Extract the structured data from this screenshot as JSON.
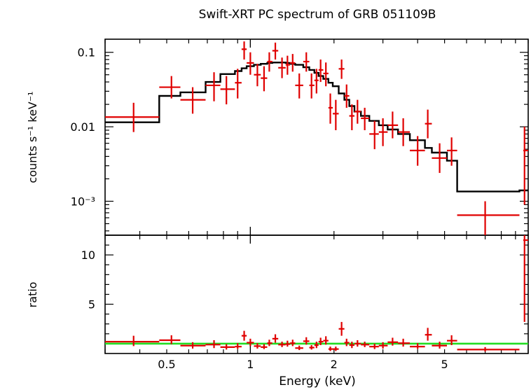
{
  "chart_data": [
    {
      "type": "scatter",
      "panel": "spectrum",
      "title": "Swift-XRT PC spectrum of GRB 051109B",
      "xlabel": "Energy (keV)",
      "ylabel": "counts s⁻¹ keV⁻¹",
      "xscale": "log",
      "yscale": "log",
      "xlim": [
        0.3,
        10
      ],
      "ylim": [
        0.00035,
        0.15
      ],
      "x_tick_labels": [
        "0.5",
        "1",
        "2",
        "5"
      ],
      "y_tick_labels": [
        "10⁻³",
        "0.01",
        "0.1"
      ],
      "series": [
        {
          "name": "",
          "kind": "data",
          "color": "#e00000",
          "points": [
            {
              "x": 0.38,
              "xlo": 0.3,
              "xhi": 0.47,
              "y": 0.0135,
              "ylo": 0.0085,
              "yhi": 0.021
            },
            {
              "x": 0.52,
              "xlo": 0.47,
              "xhi": 0.56,
              "y": 0.034,
              "ylo": 0.024,
              "yhi": 0.048
            },
            {
              "x": 0.62,
              "xlo": 0.56,
              "xhi": 0.69,
              "y": 0.023,
              "ylo": 0.015,
              "yhi": 0.034
            },
            {
              "x": 0.74,
              "xlo": 0.69,
              "xhi": 0.78,
              "y": 0.036,
              "ylo": 0.022,
              "yhi": 0.054
            },
            {
              "x": 0.82,
              "xlo": 0.78,
              "xhi": 0.88,
              "y": 0.032,
              "ylo": 0.02,
              "yhi": 0.048
            },
            {
              "x": 0.9,
              "xlo": 0.88,
              "xhi": 0.93,
              "y": 0.039,
              "ylo": 0.024,
              "yhi": 0.06
            },
            {
              "x": 0.95,
              "xlo": 0.93,
              "xhi": 0.97,
              "y": 0.11,
              "ylo": 0.08,
              "yhi": 0.14
            },
            {
              "x": 1.0,
              "xlo": 0.97,
              "xhi": 1.03,
              "y": 0.072,
              "ylo": 0.05,
              "yhi": 0.1
            },
            {
              "x": 1.06,
              "xlo": 1.03,
              "xhi": 1.09,
              "y": 0.05,
              "ylo": 0.035,
              "yhi": 0.07
            },
            {
              "x": 1.12,
              "xlo": 1.09,
              "xhi": 1.15,
              "y": 0.045,
              "ylo": 0.03,
              "yhi": 0.065
            },
            {
              "x": 1.17,
              "xlo": 1.15,
              "xhi": 1.2,
              "y": 0.075,
              "ylo": 0.055,
              "yhi": 0.1
            },
            {
              "x": 1.23,
              "xlo": 1.2,
              "xhi": 1.26,
              "y": 0.105,
              "ylo": 0.08,
              "yhi": 0.135
            },
            {
              "x": 1.3,
              "xlo": 1.26,
              "xhi": 1.34,
              "y": 0.062,
              "ylo": 0.045,
              "yhi": 0.085
            },
            {
              "x": 1.36,
              "xlo": 1.34,
              "xhi": 1.39,
              "y": 0.068,
              "ylo": 0.05,
              "yhi": 0.09
            },
            {
              "x": 1.42,
              "xlo": 1.39,
              "xhi": 1.45,
              "y": 0.072,
              "ylo": 0.055,
              "yhi": 0.095
            },
            {
              "x": 1.5,
              "xlo": 1.45,
              "xhi": 1.55,
              "y": 0.036,
              "ylo": 0.024,
              "yhi": 0.052
            },
            {
              "x": 1.59,
              "xlo": 1.55,
              "xhi": 1.63,
              "y": 0.075,
              "ylo": 0.055,
              "yhi": 0.1
            },
            {
              "x": 1.66,
              "xlo": 1.63,
              "xhi": 1.7,
              "y": 0.036,
              "ylo": 0.024,
              "yhi": 0.052
            },
            {
              "x": 1.73,
              "xlo": 1.7,
              "xhi": 1.76,
              "y": 0.042,
              "ylo": 0.028,
              "yhi": 0.06
            },
            {
              "x": 1.79,
              "xlo": 1.76,
              "xhi": 1.83,
              "y": 0.058,
              "ylo": 0.04,
              "yhi": 0.08
            },
            {
              "x": 1.87,
              "xlo": 1.83,
              "xhi": 1.91,
              "y": 0.052,
              "ylo": 0.035,
              "yhi": 0.073
            },
            {
              "x": 1.94,
              "xlo": 1.91,
              "xhi": 1.98,
              "y": 0.018,
              "ylo": 0.011,
              "yhi": 0.028
            },
            {
              "x": 2.03,
              "xlo": 1.98,
              "xhi": 2.08,
              "y": 0.015,
              "ylo": 0.009,
              "yhi": 0.023
            },
            {
              "x": 2.13,
              "xlo": 2.08,
              "xhi": 2.18,
              "y": 0.06,
              "ylo": 0.044,
              "yhi": 0.08
            },
            {
              "x": 2.22,
              "xlo": 2.18,
              "xhi": 2.27,
              "y": 0.026,
              "ylo": 0.018,
              "yhi": 0.037
            },
            {
              "x": 2.32,
              "xlo": 2.27,
              "xhi": 2.37,
              "y": 0.014,
              "ylo": 0.009,
              "yhi": 0.02
            },
            {
              "x": 2.43,
              "xlo": 2.37,
              "xhi": 2.5,
              "y": 0.016,
              "ylo": 0.011,
              "yhi": 0.023
            },
            {
              "x": 2.58,
              "xlo": 2.5,
              "xhi": 2.68,
              "y": 0.013,
              "ylo": 0.009,
              "yhi": 0.018
            },
            {
              "x": 2.8,
              "xlo": 2.68,
              "xhi": 2.9,
              "y": 0.008,
              "ylo": 0.005,
              "yhi": 0.012
            },
            {
              "x": 3.0,
              "xlo": 2.9,
              "xhi": 3.12,
              "y": 0.0085,
              "ylo": 0.0055,
              "yhi": 0.013
            },
            {
              "x": 3.25,
              "xlo": 3.12,
              "xhi": 3.4,
              "y": 0.0105,
              "ylo": 0.007,
              "yhi": 0.016
            },
            {
              "x": 3.55,
              "xlo": 3.4,
              "xhi": 3.75,
              "y": 0.0085,
              "ylo": 0.0055,
              "yhi": 0.013
            },
            {
              "x": 4.0,
              "xlo": 3.75,
              "xhi": 4.25,
              "y": 0.0048,
              "ylo": 0.003,
              "yhi": 0.0075
            },
            {
              "x": 4.35,
              "xlo": 4.25,
              "xhi": 4.5,
              "y": 0.011,
              "ylo": 0.007,
              "yhi": 0.017
            },
            {
              "x": 4.8,
              "xlo": 4.5,
              "xhi": 5.1,
              "y": 0.0038,
              "ylo": 0.0024,
              "yhi": 0.006
            },
            {
              "x": 5.3,
              "xlo": 5.1,
              "xhi": 5.55,
              "y": 0.0048,
              "ylo": 0.003,
              "yhi": 0.0072
            },
            {
              "x": 7.0,
              "xlo": 5.55,
              "xhi": 9.3,
              "y": 0.00065,
              "ylo": 0.00035,
              "yhi": 0.001
            },
            {
              "x": 9.7,
              "xlo": 9.6,
              "xhi": 10.0,
              "y": 0.0048,
              "ylo": 0.0009,
              "yhi": 0.01
            }
          ]
        },
        {
          "name": "",
          "kind": "model-step",
          "color": "#000000",
          "edges": [
            0.3,
            0.47,
            0.56,
            0.69,
            0.78,
            0.88,
            0.93,
            0.97,
            1.03,
            1.09,
            1.15,
            1.2,
            1.26,
            1.34,
            1.39,
            1.45,
            1.55,
            1.63,
            1.7,
            1.76,
            1.83,
            1.91,
            1.98,
            2.08,
            2.18,
            2.27,
            2.37,
            2.5,
            2.68,
            2.9,
            3.12,
            3.4,
            3.75,
            4.25,
            4.5,
            5.1,
            5.55,
            9.3,
            10.0
          ],
          "values": [
            0.0115,
            0.026,
            0.029,
            0.04,
            0.051,
            0.056,
            0.061,
            0.065,
            0.068,
            0.07,
            0.072,
            0.073,
            0.073,
            0.072,
            0.07,
            0.068,
            0.063,
            0.058,
            0.053,
            0.048,
            0.044,
            0.039,
            0.035,
            0.028,
            0.023,
            0.019,
            0.016,
            0.014,
            0.012,
            0.0105,
            0.0092,
            0.008,
            0.0066,
            0.0052,
            0.0045,
            0.0035,
            0.00135,
            0.0014
          ]
        }
      ]
    },
    {
      "type": "scatter",
      "panel": "ratio",
      "xlabel": "Energy (keV)",
      "ylabel": "ratio",
      "xscale": "log",
      "xlim": [
        0.3,
        10
      ],
      "ylim": [
        0,
        12
      ],
      "x_tick_labels": [
        "0.5",
        "1",
        "2",
        "5"
      ],
      "y_tick_labels": [
        "5",
        "10"
      ],
      "reference_line": 1,
      "series": [
        {
          "name": "",
          "kind": "data",
          "color": "#e00000",
          "points": [
            {
              "x": 0.38,
              "xlo": 0.3,
              "xhi": 0.47,
              "y": 1.2,
              "ylo": 0.75,
              "yhi": 1.8
            },
            {
              "x": 0.52,
              "xlo": 0.47,
              "xhi": 0.56,
              "y": 1.35,
              "ylo": 0.95,
              "yhi": 1.85
            },
            {
              "x": 0.62,
              "xlo": 0.56,
              "xhi": 0.69,
              "y": 0.8,
              "ylo": 0.5,
              "yhi": 1.15
            },
            {
              "x": 0.74,
              "xlo": 0.69,
              "xhi": 0.78,
              "y": 0.9,
              "ylo": 0.55,
              "yhi": 1.35
            },
            {
              "x": 0.82,
              "xlo": 0.78,
              "xhi": 0.88,
              "y": 0.65,
              "ylo": 0.4,
              "yhi": 0.95
            },
            {
              "x": 0.9,
              "xlo": 0.88,
              "xhi": 0.93,
              "y": 0.7,
              "ylo": 0.45,
              "yhi": 1.05
            },
            {
              "x": 0.95,
              "xlo": 0.93,
              "xhi": 0.97,
              "y": 1.8,
              "ylo": 1.3,
              "yhi": 2.3
            },
            {
              "x": 1.0,
              "xlo": 0.97,
              "xhi": 1.03,
              "y": 1.1,
              "ylo": 0.75,
              "yhi": 1.5
            },
            {
              "x": 1.06,
              "xlo": 1.03,
              "xhi": 1.09,
              "y": 0.75,
              "ylo": 0.5,
              "yhi": 1.05
            },
            {
              "x": 1.12,
              "xlo": 1.09,
              "xhi": 1.15,
              "y": 0.65,
              "ylo": 0.45,
              "yhi": 0.95
            },
            {
              "x": 1.17,
              "xlo": 1.15,
              "xhi": 1.2,
              "y": 1.05,
              "ylo": 0.75,
              "yhi": 1.4
            },
            {
              "x": 1.23,
              "xlo": 1.2,
              "xhi": 1.26,
              "y": 1.5,
              "ylo": 1.1,
              "yhi": 1.95
            },
            {
              "x": 1.3,
              "xlo": 1.26,
              "xhi": 1.34,
              "y": 0.9,
              "ylo": 0.65,
              "yhi": 1.2
            },
            {
              "x": 1.36,
              "xlo": 1.34,
              "xhi": 1.39,
              "y": 0.95,
              "ylo": 0.7,
              "yhi": 1.3
            },
            {
              "x": 1.42,
              "xlo": 1.39,
              "xhi": 1.45,
              "y": 1.05,
              "ylo": 0.75,
              "yhi": 1.4
            },
            {
              "x": 1.5,
              "xlo": 1.45,
              "xhi": 1.55,
              "y": 0.55,
              "ylo": 0.35,
              "yhi": 0.8
            },
            {
              "x": 1.59,
              "xlo": 1.55,
              "xhi": 1.63,
              "y": 1.25,
              "ylo": 0.9,
              "yhi": 1.65
            },
            {
              "x": 1.66,
              "xlo": 1.63,
              "xhi": 1.7,
              "y": 0.6,
              "ylo": 0.4,
              "yhi": 0.85
            },
            {
              "x": 1.73,
              "xlo": 1.7,
              "xhi": 1.76,
              "y": 0.85,
              "ylo": 0.55,
              "yhi": 1.2
            },
            {
              "x": 1.79,
              "xlo": 1.76,
              "xhi": 1.83,
              "y": 1.2,
              "ylo": 0.85,
              "yhi": 1.6
            },
            {
              "x": 1.87,
              "xlo": 1.83,
              "xhi": 1.91,
              "y": 1.3,
              "ylo": 0.9,
              "yhi": 1.75
            },
            {
              "x": 1.94,
              "xlo": 1.91,
              "xhi": 1.98,
              "y": 0.45,
              "ylo": 0.25,
              "yhi": 0.7
            },
            {
              "x": 2.03,
              "xlo": 1.98,
              "xhi": 2.08,
              "y": 0.45,
              "ylo": 0.25,
              "yhi": 0.7
            },
            {
              "x": 2.13,
              "xlo": 2.08,
              "xhi": 2.18,
              "y": 2.5,
              "ylo": 1.8,
              "yhi": 3.2
            },
            {
              "x": 2.22,
              "xlo": 2.18,
              "xhi": 2.27,
              "y": 1.1,
              "ylo": 0.75,
              "yhi": 1.5
            },
            {
              "x": 2.32,
              "xlo": 2.27,
              "xhi": 2.37,
              "y": 0.85,
              "ylo": 0.55,
              "yhi": 1.2
            },
            {
              "x": 2.43,
              "xlo": 2.37,
              "xhi": 2.5,
              "y": 1.0,
              "ylo": 0.7,
              "yhi": 1.35
            },
            {
              "x": 2.58,
              "xlo": 2.5,
              "xhi": 2.68,
              "y": 0.9,
              "ylo": 0.65,
              "yhi": 1.2
            },
            {
              "x": 2.8,
              "xlo": 2.68,
              "xhi": 2.9,
              "y": 0.7,
              "ylo": 0.45,
              "yhi": 1.0
            },
            {
              "x": 3.0,
              "xlo": 2.9,
              "xhi": 3.12,
              "y": 0.8,
              "ylo": 0.5,
              "yhi": 1.15
            },
            {
              "x": 3.25,
              "xlo": 3.12,
              "xhi": 3.4,
              "y": 1.15,
              "ylo": 0.8,
              "yhi": 1.6
            },
            {
              "x": 3.55,
              "xlo": 3.4,
              "xhi": 3.75,
              "y": 1.05,
              "ylo": 0.7,
              "yhi": 1.5
            },
            {
              "x": 4.0,
              "xlo": 3.75,
              "xhi": 4.25,
              "y": 0.7,
              "ylo": 0.45,
              "yhi": 1.05
            },
            {
              "x": 4.35,
              "xlo": 4.25,
              "xhi": 4.5,
              "y": 1.9,
              "ylo": 1.3,
              "yhi": 2.6
            },
            {
              "x": 4.8,
              "xlo": 4.5,
              "xhi": 5.1,
              "y": 0.8,
              "ylo": 0.5,
              "yhi": 1.2
            },
            {
              "x": 5.3,
              "xlo": 5.1,
              "xhi": 5.55,
              "y": 1.3,
              "ylo": 0.85,
              "yhi": 1.85
            },
            {
              "x": 7.0,
              "xlo": 5.55,
              "xhi": 9.3,
              "y": 0.4,
              "ylo": 0.2,
              "yhi": 0.65
            },
            {
              "x": 9.7,
              "xlo": 9.6,
              "xhi": 10.0,
              "y": 11.5,
              "ylo": 3.2,
              "yhi": 12
            }
          ]
        }
      ]
    }
  ]
}
